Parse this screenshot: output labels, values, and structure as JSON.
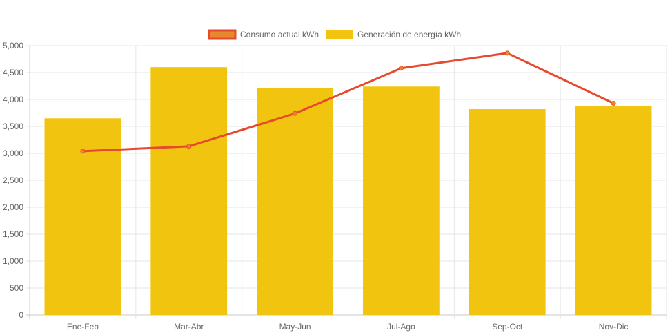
{
  "chart_data": {
    "type": "bar",
    "categories": [
      "Ene-Feb",
      "Mar-Abr",
      "May-Jun",
      "Jul-Ago",
      "Sep-Oct",
      "Nov-Dic"
    ],
    "series": [
      {
        "name": "Consumo actual kWh",
        "type": "line",
        "color": "#e6492d",
        "marker_color": "#e6892d",
        "values": [
          3040,
          3130,
          3740,
          4580,
          4860,
          3930
        ]
      },
      {
        "name": "Generación de energía kWh",
        "type": "bar",
        "color": "#f1c40f",
        "values": [
          3650,
          4600,
          4210,
          4240,
          3820,
          3880
        ]
      }
    ],
    "ylim": [
      0,
      5000
    ],
    "yticks": [
      "0",
      "500",
      "1,000",
      "1,500",
      "2,000",
      "2,500",
      "3,000",
      "3,500",
      "4,000",
      "4,500",
      "5,000"
    ],
    "grid": true,
    "legend_position": "top"
  }
}
